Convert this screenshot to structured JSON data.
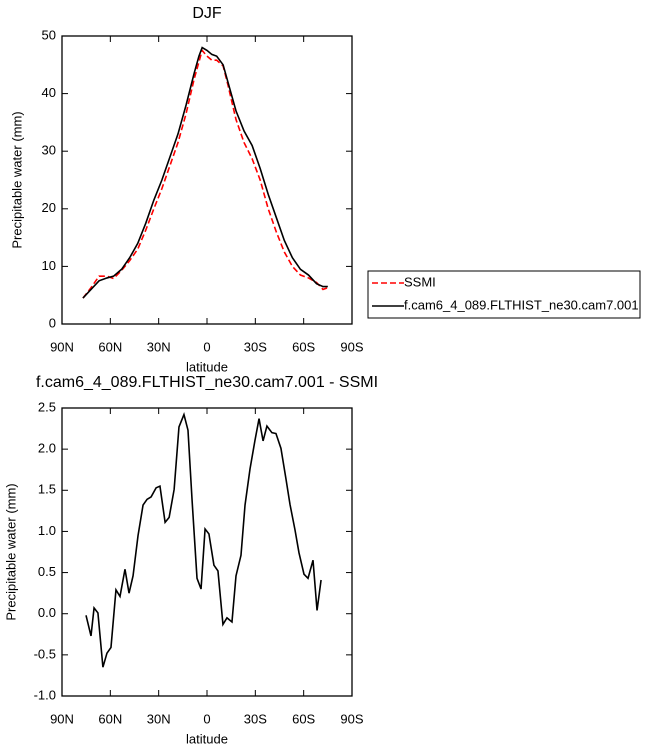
{
  "chart_data": [
    {
      "type": "line",
      "title": "DJF",
      "xlabel": "latitude",
      "ylabel": "Precipitable water (mm)",
      "x": [
        77,
        72,
        67,
        62,
        58,
        53,
        48,
        43,
        38,
        33,
        28,
        23,
        18,
        13,
        8,
        5,
        3,
        0,
        -3,
        -6,
        -10,
        -13,
        -18,
        -23,
        -28,
        -33,
        -38,
        -43,
        -48,
        -53,
        -58,
        -63,
        -68,
        -72,
        -75
      ],
      "series": [
        {
          "name": "SSMI",
          "color": "#ff0000",
          "dashed": true,
          "values": [
            4.5,
            6.3,
            8.3,
            8.3,
            7.9,
            9.3,
            11.0,
            13.0,
            16.3,
            20.0,
            23.5,
            27.5,
            31.5,
            36.5,
            42.5,
            45.5,
            47.5,
            46.5,
            45.8,
            45.8,
            44.8,
            41.5,
            35.5,
            31.5,
            28.7,
            25.0,
            20.0,
            16.0,
            12.5,
            10.0,
            8.5,
            8.0,
            7.2,
            6.0,
            6.3
          ]
        },
        {
          "name": "f.cam6_4_089.FLTHIST_ne30.cam7.001",
          "color": "#000000",
          "dashed": false,
          "values": [
            4.5,
            6.0,
            7.5,
            8.0,
            8.3,
            9.5,
            11.5,
            14.0,
            17.5,
            21.5,
            25.0,
            29.0,
            33.0,
            38.0,
            43.5,
            46.5,
            48.0,
            47.5,
            46.8,
            46.5,
            45.0,
            42.0,
            37.0,
            33.5,
            31.0,
            27.0,
            22.5,
            18.5,
            14.5,
            11.5,
            9.5,
            8.5,
            7.0,
            6.5,
            6.5
          ]
        }
      ],
      "xlim": [
        90,
        -90
      ],
      "xticks": [
        {
          "value": 90,
          "label": "90N"
        },
        {
          "value": 60,
          "label": "60N"
        },
        {
          "value": 30,
          "label": "30N"
        },
        0,
        {
          "value": -30,
          "label": "30S"
        },
        {
          "value": -60,
          "label": "60S"
        },
        {
          "value": -90,
          "label": "90S"
        }
      ],
      "ylim": [
        0,
        50
      ],
      "yticks": [
        0,
        10,
        20,
        30,
        40,
        50
      ],
      "legend": "right"
    },
    {
      "type": "line",
      "title": "f.cam6_4_089.FLTHIST_ne30.cam7.001 - SSMI",
      "xlabel": "latitude",
      "ylabel": "Precipitable water (mm)",
      "x": [
        75.1,
        72.0,
        70.1,
        67.7,
        64.6,
        62.1,
        59.6,
        56.5,
        54.0,
        50.9,
        48.4,
        45.9,
        42.8,
        39.7,
        37.2,
        34.7,
        31.6,
        29.2,
        26.0,
        23.5,
        20.4,
        17.4,
        14.3,
        11.8,
        9.3,
        6.2,
        3.7,
        1.2,
        -1.2,
        -4.3,
        -6.8,
        -9.9,
        -12.4,
        -15.5,
        -18.0,
        -21.1,
        -23.6,
        -26.7,
        -29.8,
        -32.3,
        -34.8,
        -37.2,
        -40.3,
        -42.8,
        -45.9,
        -49.0,
        -51.5,
        -54.6,
        -57.1,
        -60.2,
        -62.7,
        -65.8,
        -68.3,
        -70.8
      ],
      "series": [
        {
          "color": "#000000",
          "values": [
            -0.02,
            -0.27,
            0.07,
            0.01,
            -0.65,
            -0.48,
            -0.41,
            0.29,
            0.21,
            0.54,
            0.25,
            0.46,
            0.95,
            1.32,
            1.39,
            1.42,
            1.53,
            1.55,
            1.11,
            1.17,
            1.51,
            2.27,
            2.42,
            2.23,
            1.39,
            0.43,
            0.3,
            1.03,
            0.97,
            0.59,
            0.52,
            -0.13,
            -0.05,
            -0.1,
            0.46,
            0.71,
            1.32,
            1.76,
            2.11,
            2.37,
            2.1,
            2.28,
            2.2,
            2.19,
            2.01,
            1.64,
            1.33,
            1.02,
            0.74,
            0.48,
            0.43,
            0.65,
            0.04,
            0.41
          ]
        }
      ],
      "xlim": [
        90,
        -90
      ],
      "xticks": [
        {
          "value": 90,
          "label": "90N"
        },
        {
          "value": 60,
          "label": "60N"
        },
        {
          "value": 30,
          "label": "30N"
        },
        0,
        {
          "value": -30,
          "label": "30S"
        },
        {
          "value": -60,
          "label": "60S"
        },
        {
          "value": -90,
          "label": "90S"
        }
      ],
      "ylim": [
        -1,
        2.5
      ],
      "yticks": [
        {
          "value": -1,
          "label": "-1.0"
        },
        -0.5,
        {
          "value": 0,
          "label": "0.0"
        },
        0.5,
        {
          "value": 1,
          "label": "1.0"
        },
        1.5,
        {
          "value": 2,
          "label": "2.0"
        },
        2.5
      ]
    }
  ]
}
